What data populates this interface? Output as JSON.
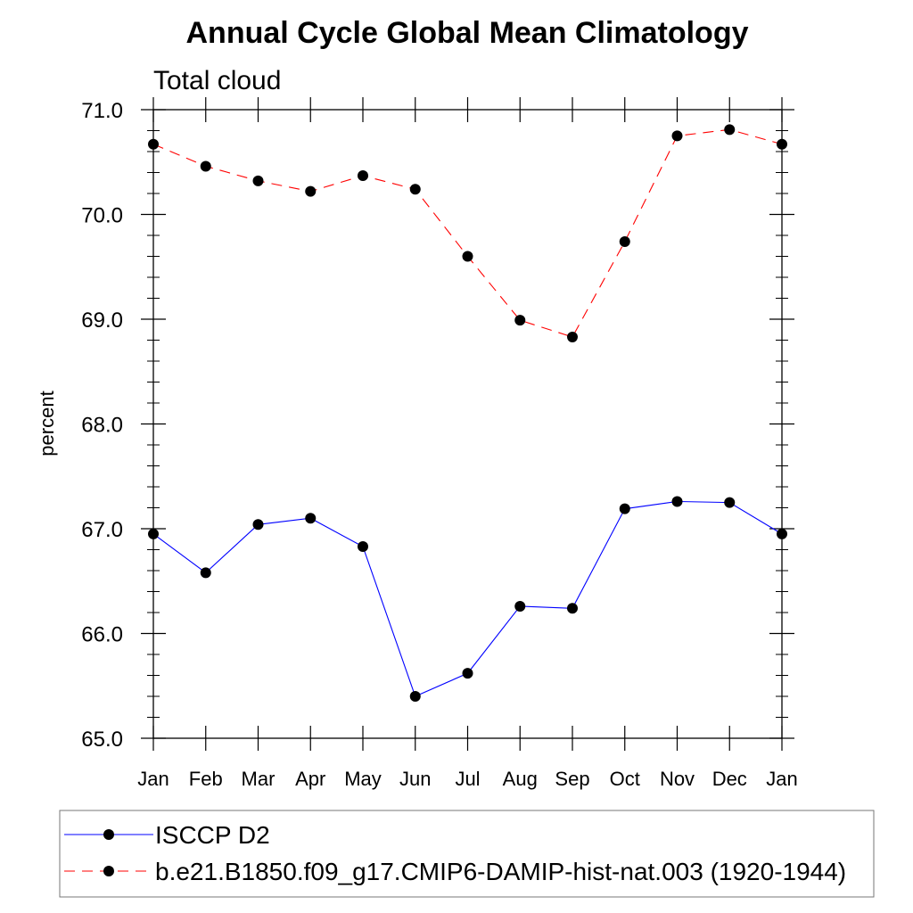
{
  "chart_data": {
    "type": "line",
    "title": "Annual Cycle Global Mean Climatology",
    "subtitle": "Total cloud",
    "xlabel": "",
    "ylabel": "percent",
    "categories": [
      "Jan",
      "Feb",
      "Mar",
      "Apr",
      "May",
      "Jun",
      "Jul",
      "Aug",
      "Sep",
      "Oct",
      "Nov",
      "Dec",
      "Jan"
    ],
    "ylim": [
      65.0,
      71.0
    ],
    "yticks": [
      "65.0",
      "66.0",
      "67.0",
      "68.0",
      "69.0",
      "70.0",
      "71.0"
    ],
    "grid": false,
    "legend_position": "bottom",
    "series": [
      {
        "name": "ISCCP D2",
        "color": "#0000ff",
        "line_style": "solid",
        "marker": "filled-circle",
        "values": [
          66.95,
          66.58,
          67.04,
          67.1,
          66.83,
          65.4,
          65.62,
          66.26,
          66.24,
          67.19,
          67.26,
          67.25,
          66.95
        ]
      },
      {
        "name": "b.e21.B1850.f09_g17.CMIP6-DAMIP-hist-nat.003 (1920-1944)",
        "color": "#ff0000",
        "line_style": "dashed",
        "marker": "filled-circle",
        "values": [
          70.67,
          70.46,
          70.32,
          70.22,
          70.37,
          70.24,
          69.6,
          68.99,
          68.83,
          69.74,
          70.75,
          70.81,
          70.67
        ]
      }
    ]
  }
}
